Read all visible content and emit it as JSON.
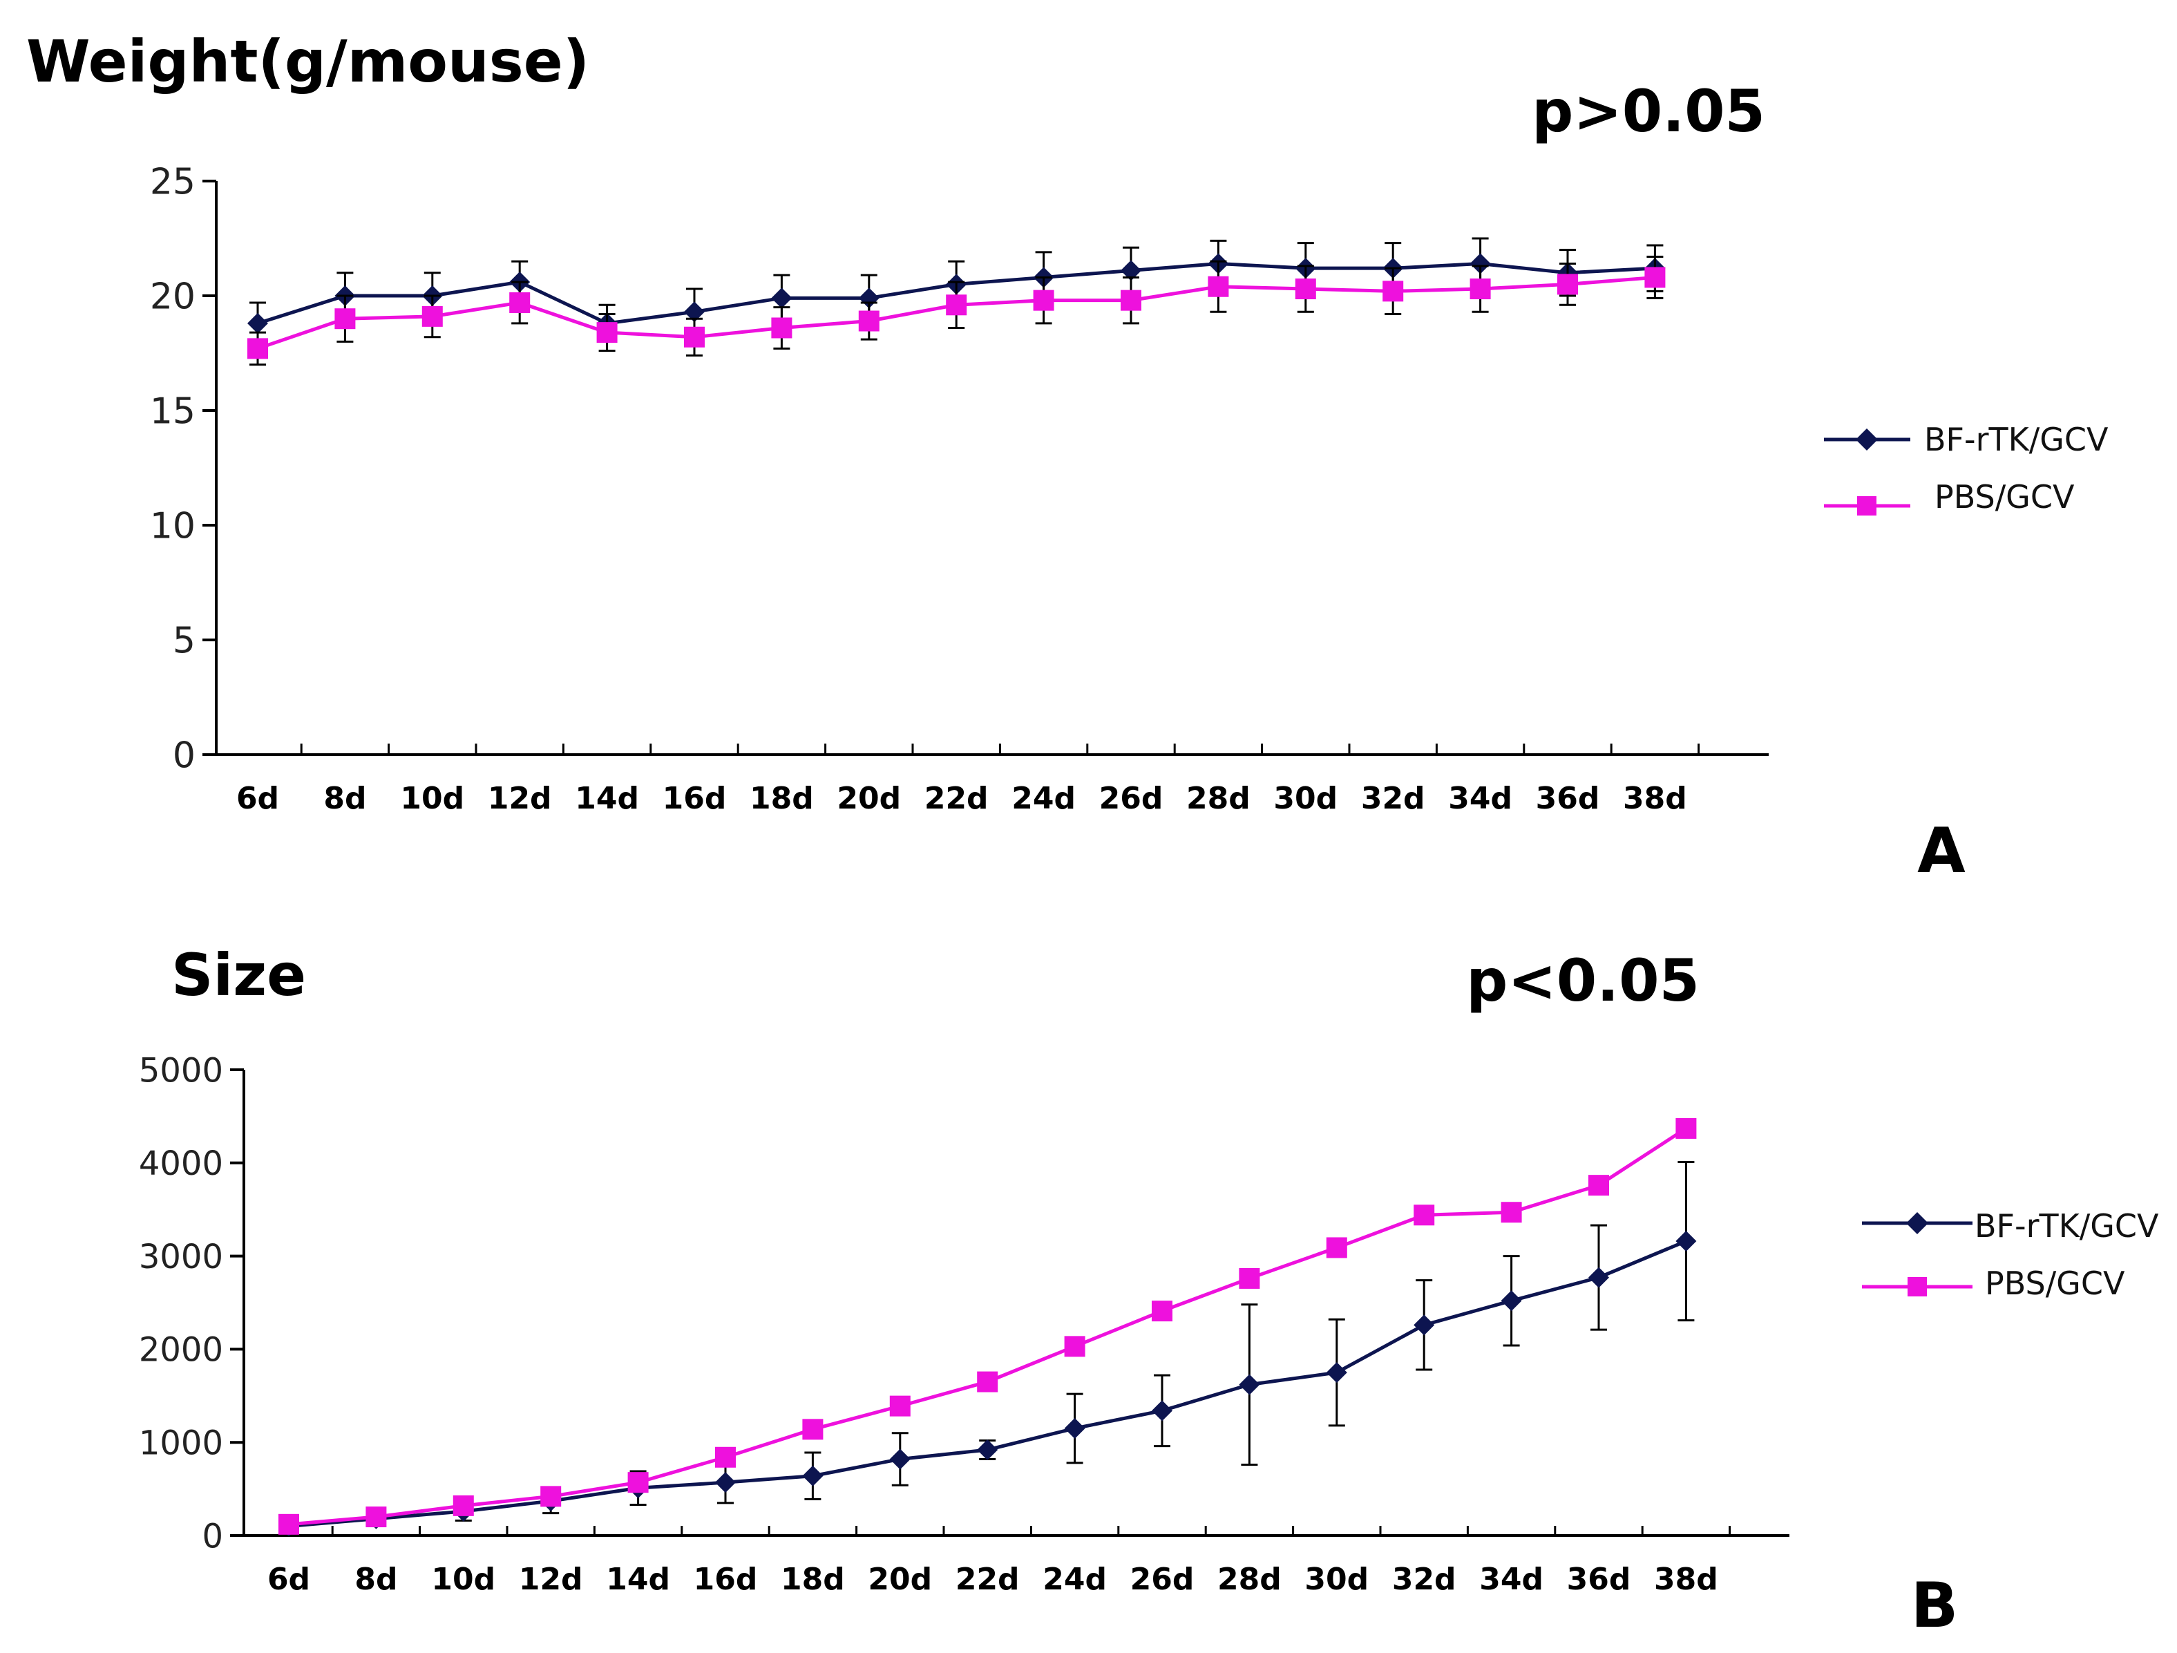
{
  "chart_data": [
    {
      "type": "line",
      "panel_label": "A",
      "title": "Weight(g/mouse)",
      "annotation": "p>0.05",
      "categories": [
        "6d",
        "8d",
        "10d",
        "12d",
        "14d",
        "16d",
        "18d",
        "20d",
        "22d",
        "24d",
        "26d",
        "28d",
        "30d",
        "32d",
        "34d",
        "36d",
        "38d"
      ],
      "y_ticks": [
        "0",
        "5",
        "10",
        "15",
        "20",
        "25"
      ],
      "ylim": [
        0,
        25
      ],
      "legend_position": "right",
      "series": [
        {
          "name": "BF-rTK/GCV",
          "color": "#0d1550",
          "marker": "diamond",
          "values": [
            18.8,
            20.0,
            20.0,
            20.6,
            18.8,
            19.3,
            19.9,
            19.9,
            20.5,
            20.8,
            21.1,
            21.4,
            21.2,
            21.2,
            21.4,
            21.0,
            21.2
          ],
          "errors": [
            0.9,
            1.0,
            1.0,
            0.9,
            0.8,
            1.0,
            1.0,
            1.0,
            1.0,
            1.1,
            1.0,
            1.0,
            1.1,
            1.1,
            1.1,
            1.0,
            1.0
          ]
        },
        {
          "name": "PBS/GCV",
          "color": "#ee11dd",
          "marker": "square",
          "values": [
            17.7,
            19.0,
            19.1,
            19.7,
            18.4,
            18.2,
            18.6,
            18.9,
            19.6,
            19.8,
            19.8,
            20.4,
            20.3,
            20.2,
            20.3,
            20.5,
            20.8
          ],
          "errors": [
            0.7,
            1.0,
            0.9,
            0.9,
            0.8,
            0.8,
            0.9,
            0.8,
            1.0,
            1.0,
            1.0,
            1.1,
            1.0,
            1.0,
            1.0,
            0.9,
            0.9
          ]
        }
      ]
    },
    {
      "type": "line",
      "panel_label": "B",
      "title": "Size",
      "annotation": "p<0.05",
      "categories": [
        "6d",
        "8d",
        "10d",
        "12d",
        "14d",
        "16d",
        "18d",
        "20d",
        "22d",
        "24d",
        "26d",
        "28d",
        "30d",
        "32d",
        "34d",
        "36d",
        "38d"
      ],
      "y_ticks": [
        "0",
        "1000",
        "2000",
        "3000",
        "4000",
        "5000"
      ],
      "ylim": [
        0,
        5000
      ],
      "legend_position": "right",
      "series": [
        {
          "name": "BF-rTK/GCV",
          "color": "#0d1550",
          "marker": "diamond",
          "values": [
            100,
            180,
            260,
            370,
            510,
            570,
            640,
            820,
            920,
            1150,
            1340,
            1620,
            1750,
            2260,
            2520,
            2770,
            3160
          ],
          "errors": [
            40,
            80,
            100,
            130,
            180,
            220,
            250,
            280,
            100,
            370,
            380,
            860,
            570,
            480,
            480,
            560,
            850
          ]
        },
        {
          "name": "PBS/GCV",
          "color": "#ee11dd",
          "marker": "square",
          "values": [
            120,
            200,
            320,
            420,
            570,
            840,
            1140,
            1390,
            1650,
            2030,
            2410,
            2760,
            3090,
            3440,
            3470,
            3760,
            4370
          ]
        }
      ]
    }
  ]
}
